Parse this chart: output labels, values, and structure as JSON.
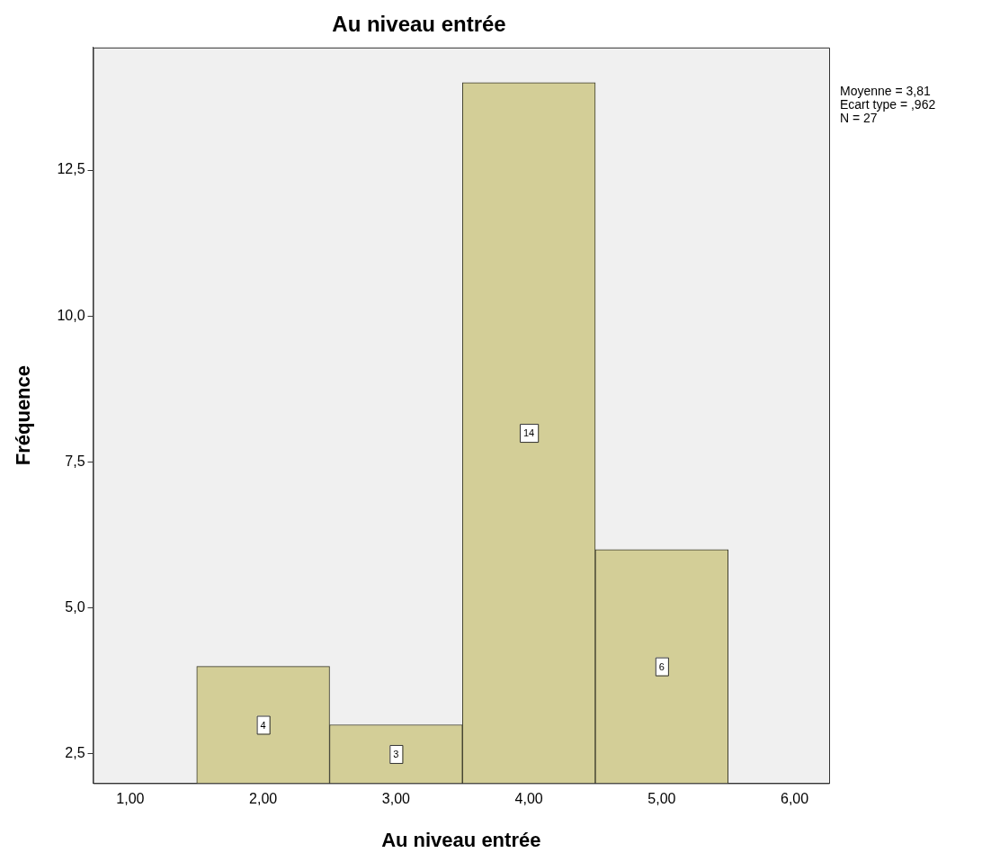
{
  "chart_data": {
    "type": "histogram",
    "title": "Au niveau entrée",
    "xlabel": "Au niveau entrée",
    "ylabel": "Fréquence",
    "bins": [
      1.5,
      2.5,
      3.5,
      4.5,
      5.5
    ],
    "values": [
      4,
      3,
      14,
      6
    ],
    "color": "#d3ce97",
    "xlim": [
      0.72,
      6.26
    ],
    "ylim": [
      2.0,
      14.6
    ],
    "xticks": [
      {
        "value": 1,
        "label": "1,00"
      },
      {
        "value": 2,
        "label": "2,00"
      },
      {
        "value": 3,
        "label": "3,00"
      },
      {
        "value": 4,
        "label": "4,00"
      },
      {
        "value": 5,
        "label": "5,00"
      },
      {
        "value": 6,
        "label": "6,00"
      }
    ],
    "yticks": [
      {
        "value": 2.5,
        "label": "2,5"
      },
      {
        "value": 5,
        "label": "5,0"
      },
      {
        "value": 7.5,
        "label": "7,5"
      },
      {
        "value": 10,
        "label": "10,0"
      },
      {
        "value": 12.5,
        "label": "12,5"
      }
    ],
    "data_labels": true,
    "grid": false,
    "legend": false,
    "annotations": [
      "Moyenne = 3,81",
      "Ecart type = ,962",
      "N = 27"
    ]
  }
}
